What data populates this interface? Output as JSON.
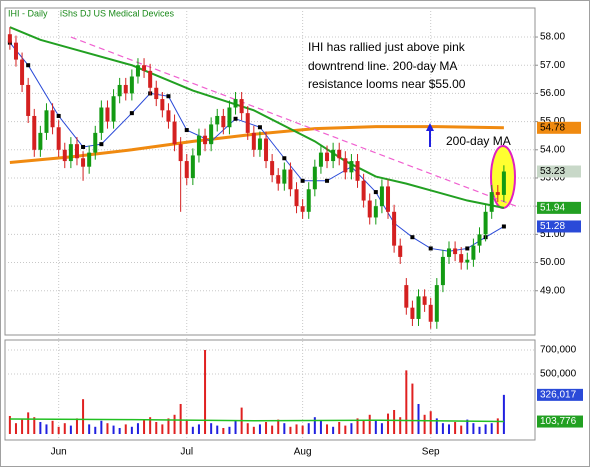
{
  "chart_data": {
    "type": "candlestick",
    "title": "IHI - Daily",
    "subtitle": "iShs DJ US Medical Devices",
    "annotations": [
      "IHI has rallied just above pink",
      "downtrend line.  200-day MA",
      "resistance looms near $55.00",
      "200-day MA"
    ],
    "xlim": [
      -0.8,
      86.1
    ],
    "xticks": [
      {
        "value": 8,
        "label": "Jun"
      },
      {
        "value": 29,
        "label": "Jul"
      },
      {
        "value": 48,
        "label": "Aug"
      },
      {
        "value": 69,
        "label": "Sep"
      }
    ],
    "ylim": [
      47.43,
      59.03
    ],
    "yticks": [
      {
        "value": 49,
        "label": "49.00"
      },
      {
        "value": 50,
        "label": "50.00"
      },
      {
        "value": 51,
        "label": "51.00"
      },
      {
        "value": 52,
        "label": "52.00"
      },
      {
        "value": 53,
        "label": "53.00"
      },
      {
        "value": 54,
        "label": "54.00"
      },
      {
        "value": 55,
        "label": "55.00"
      },
      {
        "value": 56,
        "label": "56.00"
      },
      {
        "value": 57,
        "label": "57.00"
      },
      {
        "value": 58,
        "label": "58.00"
      }
    ],
    "grid": true,
    "up_color": "#139a13",
    "down_color": "#d42020",
    "ohlc": {
      "open": [
        58.1,
        57.8,
        57.2,
        56.3,
        55.2,
        54.0,
        54.6,
        55.4,
        54.8,
        54.0,
        53.6,
        54.2,
        53.7,
        53.4,
        53.9,
        54.6,
        55.5,
        55.0,
        55.9,
        56.3,
        56.0,
        56.6,
        57.0,
        56.8,
        56.2,
        55.8,
        55.4,
        55.0,
        54.2,
        53.6,
        53.0,
        53.8,
        54.5,
        54.2,
        54.9,
        55.2,
        54.8,
        55.5,
        55.8,
        55.3,
        54.6,
        54.0,
        54.4,
        53.6,
        53.1,
        52.8,
        53.3,
        52.6,
        52.0,
        51.8,
        52.6,
        53.4,
        53.9,
        53.6,
        54.0,
        53.7,
        53.2,
        53.6,
        52.9,
        52.2,
        51.6,
        52.0,
        52.7,
        51.8,
        50.6,
        49.2,
        48.4,
        48.0,
        48.8,
        48.5,
        47.9,
        49.2,
        50.2,
        50.5,
        50.3,
        50.0,
        50.1,
        50.6,
        51.0,
        51.8,
        52.5,
        52.4
      ],
      "high": [
        58.35,
        58.05,
        57.45,
        56.55,
        55.45,
        54.85,
        55.65,
        55.65,
        55.05,
        54.25,
        54.45,
        54.45,
        53.95,
        54.15,
        54.85,
        55.75,
        55.75,
        56.15,
        56.55,
        56.55,
        56.85,
        57.25,
        57.25,
        57.05,
        56.45,
        56.05,
        55.65,
        55.25,
        54.45,
        53.85,
        54.05,
        54.75,
        54.75,
        55.15,
        55.45,
        55.45,
        55.75,
        56.05,
        56.05,
        55.55,
        54.85,
        54.65,
        54.65,
        53.85,
        53.35,
        53.55,
        53.55,
        52.85,
        52.25,
        52.85,
        53.65,
        54.15,
        54.15,
        54.25,
        54.25,
        53.95,
        53.85,
        53.85,
        53.15,
        52.45,
        52.25,
        52.95,
        52.95,
        52.05,
        50.85,
        49.45,
        48.65,
        49.05,
        49.05,
        48.75,
        49.45,
        50.45,
        50.75,
        50.75,
        50.55,
        50.35,
        50.85,
        51.25,
        52.05,
        52.75,
        52.75,
        53.45
      ],
      "low": [
        57.55,
        56.95,
        56.05,
        54.95,
        53.75,
        53.75,
        54.35,
        54.55,
        53.75,
        53.35,
        53.35,
        53.45,
        52.9,
        53.15,
        53.65,
        54.35,
        54.75,
        54.75,
        55.65,
        55.75,
        55.75,
        56.35,
        56.55,
        55.95,
        55.55,
        55.15,
        54.75,
        53.95,
        51.8,
        52.75,
        52.75,
        53.55,
        53.95,
        53.95,
        54.65,
        54.55,
        54.55,
        55.25,
        55.05,
        54.35,
        53.75,
        53.75,
        53.35,
        52.85,
        52.55,
        52.55,
        52.35,
        51.75,
        51.55,
        51.55,
        52.35,
        53.15,
        53.35,
        53.35,
        53.45,
        52.95,
        52.95,
        52.65,
        51.95,
        51.35,
        51.35,
        51.75,
        51.55,
        50.35,
        49.95,
        48.15,
        47.75,
        47.75,
        48.25,
        47.65,
        47.65,
        48.95,
        49.95,
        50.05,
        49.75,
        49.75,
        49.85,
        50.35,
        50.75,
        51.55,
        52.15,
        52.15
      ],
      "close": [
        57.8,
        57.2,
        56.3,
        55.2,
        54.0,
        54.6,
        55.4,
        54.8,
        54.0,
        53.6,
        54.2,
        53.7,
        53.4,
        53.9,
        54.6,
        55.5,
        55.0,
        55.9,
        56.3,
        56.0,
        56.6,
        57.0,
        56.8,
        56.2,
        55.8,
        55.4,
        55.0,
        54.2,
        53.6,
        53.0,
        53.8,
        54.5,
        54.2,
        54.9,
        55.2,
        54.8,
        55.5,
        55.8,
        55.3,
        54.6,
        54.0,
        54.4,
        53.6,
        53.1,
        52.8,
        53.3,
        52.6,
        52.0,
        51.8,
        52.6,
        53.4,
        53.9,
        53.6,
        54.0,
        53.7,
        53.2,
        53.6,
        52.9,
        52.2,
        51.6,
        52.0,
        52.7,
        51.8,
        50.6,
        50.2,
        48.4,
        48.0,
        48.8,
        48.5,
        47.9,
        49.2,
        50.2,
        50.5,
        50.3,
        50.0,
        50.1,
        50.6,
        51.0,
        51.8,
        52.5,
        52.4,
        53.23
      ]
    },
    "overlays": [
      {
        "color": "#f08a10",
        "width": 3,
        "style": "solid",
        "x": [
          0,
          10,
          20,
          30,
          40,
          50,
          60,
          70,
          81
        ],
        "values": [
          53.55,
          53.75,
          54.0,
          54.3,
          54.55,
          54.75,
          54.82,
          54.82,
          54.78
        ]
      },
      {
        "color": "#22a022",
        "width": 2,
        "style": "solid",
        "x": [
          0,
          5,
          10,
          20,
          30,
          40,
          50,
          55,
          60,
          65,
          70,
          75,
          81
        ],
        "values": [
          58.35,
          57.9,
          57.6,
          57.0,
          56.1,
          55.4,
          54.3,
          53.6,
          53.05,
          52.8,
          52.5,
          52.2,
          51.94
        ]
      },
      {
        "color": "#f060d0",
        "width": 1.2,
        "style": "dashed",
        "x": [
          10,
          83
        ],
        "values": [
          58.0,
          52.0
        ]
      },
      {
        "color": "#2a4ad8",
        "width": 1,
        "style": "solid",
        "markers": true,
        "x": [
          0,
          3,
          8,
          12,
          15,
          20,
          23,
          26,
          29,
          33,
          37,
          41,
          45,
          48,
          52,
          56,
          60,
          63,
          66,
          69,
          72,
          75,
          78,
          81
        ],
        "values": [
          57.8,
          57.0,
          55.2,
          54.1,
          54.2,
          55.3,
          56.0,
          55.9,
          54.7,
          54.3,
          55.1,
          54.8,
          53.7,
          52.9,
          52.9,
          53.4,
          52.5,
          51.4,
          50.9,
          50.5,
          50.4,
          50.5,
          50.9,
          51.28
        ]
      }
    ],
    "price_tags": [
      {
        "value": 54.78,
        "color": "#f08a10",
        "text_color": "#000000"
      },
      {
        "value": 53.23,
        "color": "#c8d8c8",
        "text_color": "#000000"
      },
      {
        "value": 51.94,
        "color": "#22a022",
        "text_color": "#ffffff"
      },
      {
        "value": 51.28,
        "color": "#2a4ad8",
        "text_color": "#ffffff"
      }
    ],
    "volume": {
      "ylim": [
        -50000,
        783000
      ],
      "yticks": [
        {
          "value": 500000,
          "label": "500,000"
        },
        {
          "value": 700000,
          "label": "700,000"
        }
      ],
      "up_color": "#2020e0",
      "down_color": "#e02020",
      "values": [
        150000,
        90000,
        120000,
        180000,
        140000,
        100000,
        80000,
        110000,
        60000,
        90000,
        70000,
        130000,
        290000,
        80000,
        60000,
        110000,
        90000,
        70000,
        50000,
        80000,
        60000,
        90000,
        120000,
        140000,
        100000,
        80000,
        130000,
        160000,
        250000,
        110000,
        60000,
        80000,
        700000,
        90000,
        70000,
        50000,
        60000,
        110000,
        220000,
        90000,
        60000,
        80000,
        100000,
        70000,
        120000,
        90000,
        60000,
        80000,
        70000,
        90000,
        140000,
        110000,
        80000,
        60000,
        100000,
        70000,
        90000,
        130000,
        110000,
        160000,
        120000,
        90000,
        170000,
        200000,
        140000,
        530000,
        420000,
        250000,
        160000,
        190000,
        130000,
        90000,
        80000,
        100000,
        70000,
        120000,
        90000,
        60000,
        80000,
        90000,
        130000,
        326017
      ],
      "ma": {
        "color": "#22c022",
        "x": [
          0,
          20,
          40,
          60,
          81
        ],
        "values": [
          125000,
          120000,
          110000,
          115000,
          103776
        ]
      },
      "tags": [
        {
          "value": 326017,
          "label": "326,017",
          "color": "#2a4ad8"
        },
        {
          "value": 103776,
          "label": "103,776",
          "color": "#22a022"
        }
      ]
    }
  }
}
